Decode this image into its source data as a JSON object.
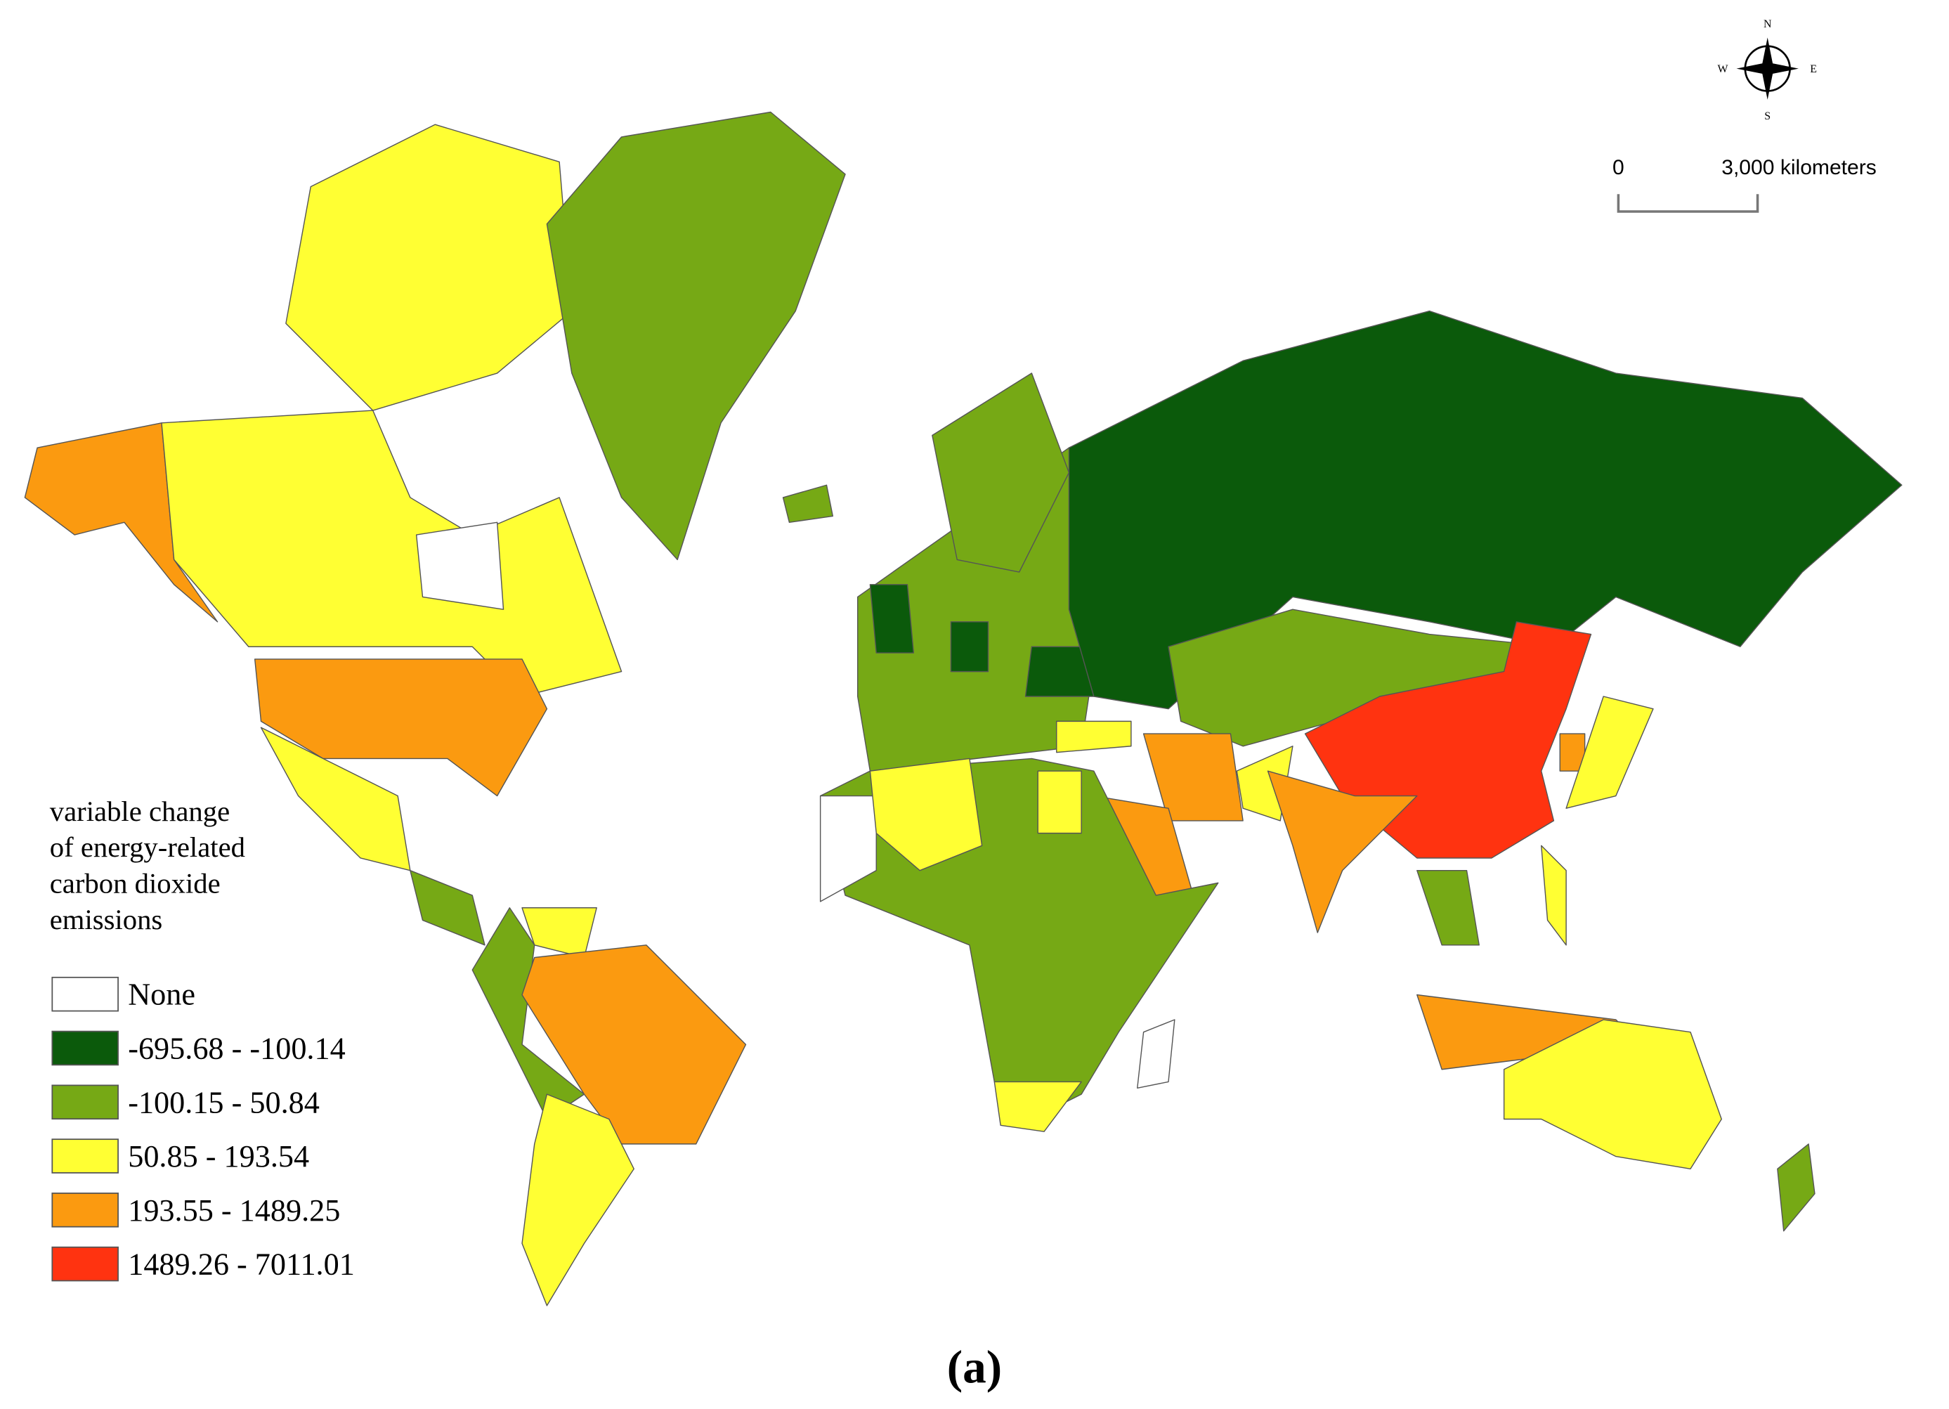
{
  "map": {
    "compass": {
      "north": "N",
      "south": "S",
      "east": "E",
      "west": "W"
    },
    "scale_bar": {
      "start_label": "0",
      "end_label": "3,000 kilometers"
    },
    "legend": {
      "title": [
        "variable change",
        "of energy-related",
        "carbon dioxide",
        "emissions"
      ],
      "items": [
        {
          "label": "None",
          "color": "#ffffff"
        },
        {
          "label": "-695.68 - -100.14",
          "color": "#0b5a0b"
        },
        {
          "label": "-100.15 - 50.84",
          "color": "#76a915"
        },
        {
          "label": "50.85 - 193.54",
          "color": "#ffff33"
        },
        {
          "label": "193.55 - 1489.25",
          "color": "#fb9a10"
        },
        {
          "label": "1489.26 - 7011.01",
          "color": "#ff3310"
        }
      ]
    },
    "caption": "(a)"
  }
}
